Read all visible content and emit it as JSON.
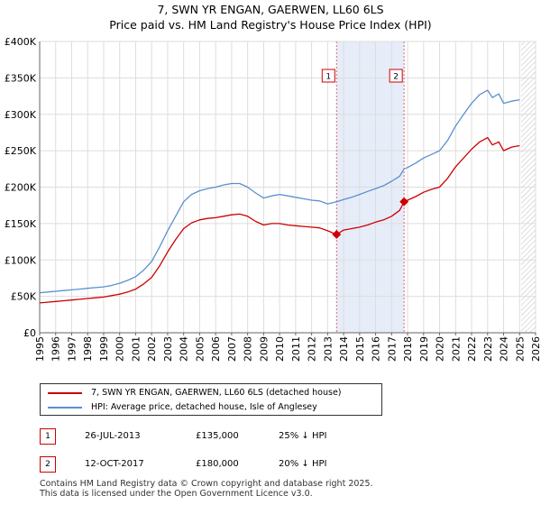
{
  "title_line1": "7, SWN YR ENGAN, GAERWEN, LL60 6LS",
  "title_line2": "Price paid vs. HM Land Registry's House Price Index (HPI)",
  "chart_data": {
    "type": "line",
    "title": "7, SWN YR ENGAN, GAERWEN, LL60 6LS — Price paid vs. HM Land Registry's House Price Index (HPI)",
    "xlabel": "",
    "ylabel": "",
    "xlim": [
      1995,
      2026
    ],
    "ylim": [
      0,
      400000
    ],
    "x_ticks": [
      1995,
      1996,
      1997,
      1998,
      1999,
      2000,
      2001,
      2002,
      2003,
      2004,
      2005,
      2006,
      2007,
      2008,
      2009,
      2010,
      2011,
      2012,
      2013,
      2014,
      2015,
      2016,
      2017,
      2018,
      2019,
      2020,
      2021,
      2022,
      2023,
      2024,
      2025,
      2026
    ],
    "x_tick_labels": [
      "1995",
      "1996",
      "1997",
      "1998",
      "1999",
      "2000",
      "2001",
      "2002",
      "2003",
      "2004",
      "2005",
      "2006",
      "2007",
      "2008",
      "2009",
      "2010",
      "2011",
      "2012",
      "2013",
      "2014",
      "2015",
      "2016",
      "2017",
      "2018",
      "2019",
      "2020",
      "2021",
      "2022",
      "2023",
      "2024",
      "2025",
      "2026"
    ],
    "y_ticks": [
      0,
      50000,
      100000,
      150000,
      200000,
      250000,
      300000,
      350000,
      400000
    ],
    "y_tick_labels": [
      "£0",
      "£50K",
      "£100K",
      "£150K",
      "£200K",
      "£250K",
      "£300K",
      "£350K",
      "£400K"
    ],
    "grid": true,
    "shaded_period": [
      2013.56,
      2017.78
    ],
    "future_hatch_from": 2025.1,
    "series": [
      {
        "name": "7, SWN YR ENGAN, GAERWEN, LL60 6LS (detached house)",
        "color": "#cc0000",
        "x": [
          1995,
          1995.5,
          1996,
          1996.5,
          1997,
          1997.5,
          1998,
          1998.5,
          1999,
          1999.5,
          2000,
          2000.5,
          2001,
          2001.5,
          2002,
          2002.5,
          2003,
          2003.5,
          2004,
          2004.5,
          2005,
          2005.5,
          2006,
          2006.5,
          2007,
          2007.5,
          2008,
          2008.5,
          2009,
          2009.5,
          2010,
          2010.5,
          2011,
          2011.5,
          2012,
          2012.5,
          2013,
          2013.56,
          2014,
          2014.5,
          2015,
          2015.5,
          2016,
          2016.5,
          2017,
          2017.5,
          2017.78,
          2018,
          2018.5,
          2019,
          2019.5,
          2020,
          2020.5,
          2021,
          2021.5,
          2022,
          2022.5,
          2023,
          2023.3,
          2023.7,
          2024,
          2024.5,
          2025
        ],
        "values": [
          41000,
          42000,
          43000,
          44000,
          45000,
          46000,
          47000,
          48000,
          49000,
          51000,
          53000,
          56000,
          60000,
          67000,
          76000,
          92000,
          111000,
          128000,
          143000,
          151000,
          155000,
          157000,
          158000,
          160000,
          162000,
          163000,
          160000,
          153000,
          148000,
          150000,
          150000,
          148000,
          147000,
          146000,
          145000,
          144000,
          140000,
          135000,
          141000,
          143000,
          145000,
          148000,
          152000,
          155000,
          160000,
          168000,
          180000,
          182000,
          187000,
          193000,
          197000,
          200000,
          212000,
          228000,
          240000,
          252000,
          262000,
          268000,
          258000,
          262000,
          250000,
          255000,
          257000
        ]
      },
      {
        "name": "HPI: Average price, detached house, Isle of Anglesey",
        "color": "#5b8fd0",
        "x": [
          1995,
          1995.5,
          1996,
          1996.5,
          1997,
          1997.5,
          1998,
          1998.5,
          1999,
          1999.5,
          2000,
          2000.5,
          2001,
          2001.5,
          2002,
          2002.5,
          2003,
          2003.5,
          2004,
          2004.5,
          2005,
          2005.5,
          2006,
          2006.5,
          2007,
          2007.5,
          2008,
          2008.5,
          2009,
          2009.5,
          2010,
          2010.5,
          2011,
          2011.5,
          2012,
          2012.5,
          2013,
          2013.56,
          2014,
          2014.5,
          2015,
          2015.5,
          2016,
          2016.5,
          2017,
          2017.5,
          2017.78,
          2018,
          2018.5,
          2019,
          2019.5,
          2020,
          2020.5,
          2021,
          2021.5,
          2022,
          2022.5,
          2023,
          2023.3,
          2023.7,
          2024,
          2024.5,
          2025
        ],
        "values": [
          55000,
          56000,
          57000,
          58000,
          59000,
          60000,
          61000,
          62000,
          63000,
          65000,
          68000,
          72000,
          77000,
          86000,
          98000,
          118000,
          140000,
          160000,
          180000,
          190000,
          195000,
          198000,
          200000,
          203000,
          205000,
          205000,
          200000,
          192000,
          185000,
          188000,
          190000,
          188000,
          186000,
          184000,
          182000,
          181000,
          177000,
          180000,
          183000,
          186000,
          190000,
          194000,
          198000,
          202000,
          208000,
          215000,
          225000,
          227000,
          233000,
          240000,
          245000,
          250000,
          264000,
          284000,
          300000,
          315000,
          327000,
          333000,
          323000,
          328000,
          315000,
          318000,
          320000
        ]
      }
    ],
    "markers": [
      {
        "label": "1",
        "x": 2013.56,
        "y": 135000
      },
      {
        "label": "2",
        "x": 2017.78,
        "y": 180000
      }
    ]
  },
  "legend": {
    "items": [
      {
        "label": "7, SWN YR ENGAN, GAERWEN, LL60 6LS (detached house)",
        "color": "#cc0000"
      },
      {
        "label": "HPI: Average price, detached house, Isle of Anglesey",
        "color": "#5b8fd0"
      }
    ]
  },
  "sales": [
    {
      "num": "1",
      "date": "26-JUL-2013",
      "price": "£135,000",
      "hpi": "25% ↓ HPI"
    },
    {
      "num": "2",
      "date": "12-OCT-2017",
      "price": "£180,000",
      "hpi": "20% ↓ HPI"
    }
  ],
  "footer": {
    "line1": "Contains HM Land Registry data © Crown copyright and database right 2025.",
    "line2": "This data is licensed under the Open Government Licence v3.0."
  }
}
